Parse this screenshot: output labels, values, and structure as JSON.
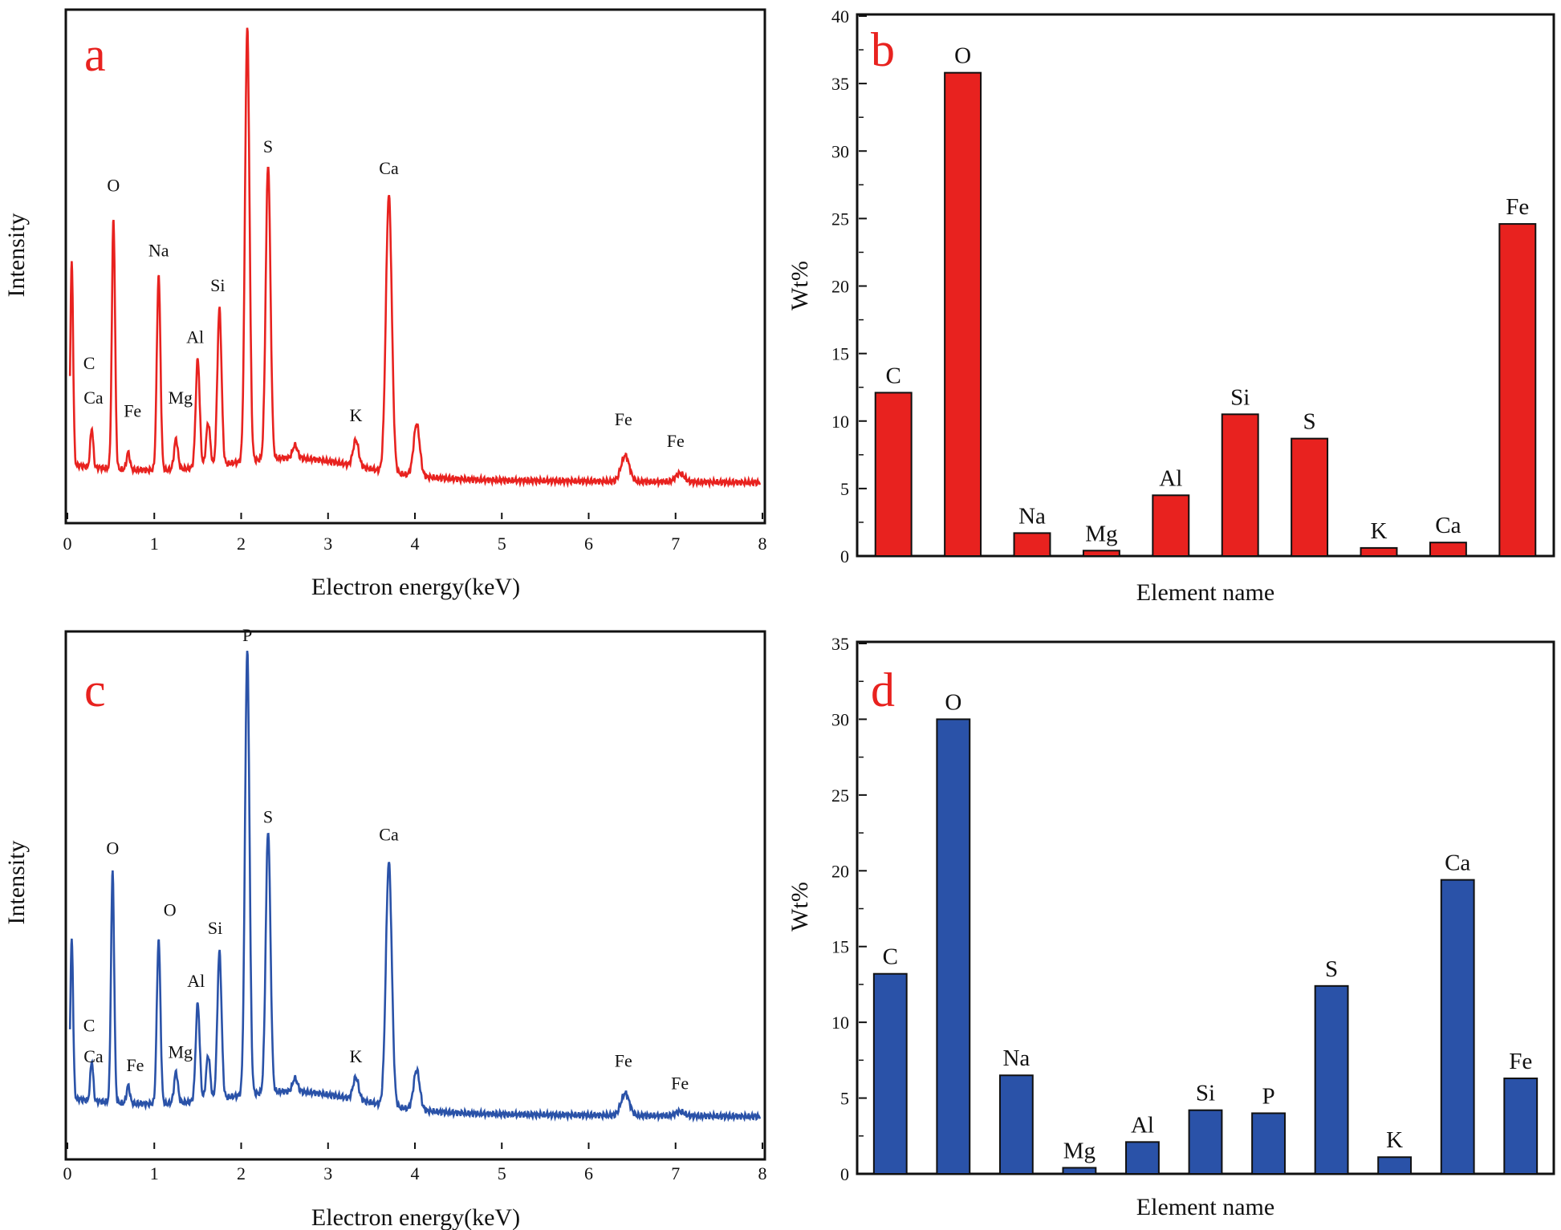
{
  "chart_data": [
    {
      "panel": "a",
      "type": "line",
      "xlabel": "Electron energy(keV)",
      "ylabel": "Intensity",
      "xlim": [
        0,
        8
      ],
      "xticks": [
        "0",
        "1",
        "2",
        "3",
        "4",
        "5",
        "6",
        "7",
        "8"
      ],
      "color": "#e8221f",
      "peaks": [
        {
          "x": 0.05,
          "h": 0.47
        },
        {
          "x": 0.28,
          "h": 0.09
        },
        {
          "x": 0.53,
          "h": 0.58
        },
        {
          "x": 0.7,
          "h": 0.04
        },
        {
          "x": 1.05,
          "h": 0.45
        },
        {
          "x": 1.25,
          "h": 0.07
        },
        {
          "x": 1.5,
          "h": 0.25
        },
        {
          "x": 1.62,
          "h": 0.1
        },
        {
          "x": 1.75,
          "h": 0.36
        },
        {
          "x": 2.07,
          "h": 1.0
        },
        {
          "x": 2.31,
          "h": 0.68
        },
        {
          "x": 2.62,
          "h": 0.03
        },
        {
          "x": 3.32,
          "h": 0.06
        },
        {
          "x": 3.7,
          "h": 0.64
        },
        {
          "x": 4.02,
          "h": 0.12
        },
        {
          "x": 6.42,
          "h": 0.06
        },
        {
          "x": 7.05,
          "h": 0.02
        }
      ],
      "peak_labels": [
        {
          "text": "C",
          "x": 0.25,
          "h": 0.25
        },
        {
          "text": "Ca",
          "x": 0.3,
          "h": 0.17
        },
        {
          "text": "O",
          "x": 0.53,
          "h": 0.66
        },
        {
          "text": "Fe",
          "x": 0.75,
          "h": 0.14
        },
        {
          "text": "Na",
          "x": 1.05,
          "h": 0.51
        },
        {
          "text": "Mg",
          "x": 1.3,
          "h": 0.17
        },
        {
          "text": "Al",
          "x": 1.47,
          "h": 0.31
        },
        {
          "text": "Si",
          "x": 1.73,
          "h": 0.43
        },
        {
          "text": "S",
          "x": 2.31,
          "h": 0.75
        },
        {
          "text": "K",
          "x": 3.32,
          "h": 0.13
        },
        {
          "text": "Ca",
          "x": 3.7,
          "h": 0.7
        },
        {
          "text": "Fe",
          "x": 6.4,
          "h": 0.12
        },
        {
          "text": "Fe",
          "x": 7.0,
          "h": 0.07
        }
      ]
    },
    {
      "panel": "b",
      "type": "bar",
      "categories": [
        "C",
        "O",
        "Na",
        "Mg",
        "Al",
        "Si",
        "S",
        "K",
        "Ca",
        "Fe"
      ],
      "values": [
        12.1,
        35.8,
        1.7,
        0.4,
        4.5,
        10.5,
        8.7,
        0.6,
        1.0,
        24.6
      ],
      "xlabel": "Element name",
      "ylabel": "Wt%",
      "ylim": [
        0,
        40
      ],
      "yticks": [
        "0",
        "5",
        "10",
        "15",
        "20",
        "25",
        "30",
        "35",
        "40"
      ],
      "color": "#e8221f"
    },
    {
      "panel": "c",
      "type": "line",
      "xlabel": "Electron energy(keV)",
      "ylabel": "Intensity",
      "xlim": [
        0,
        8
      ],
      "xticks": [
        "0",
        "1",
        "2",
        "3",
        "4",
        "5",
        "6",
        "7",
        "8"
      ],
      "color": "#2a52a8",
      "peaks": [
        {
          "x": 0.05,
          "h": 0.36
        },
        {
          "x": 0.28,
          "h": 0.09
        },
        {
          "x": 0.52,
          "h": 0.52
        },
        {
          "x": 0.7,
          "h": 0.04
        },
        {
          "x": 1.05,
          "h": 0.37
        },
        {
          "x": 1.25,
          "h": 0.07
        },
        {
          "x": 1.5,
          "h": 0.22
        },
        {
          "x": 1.62,
          "h": 0.1
        },
        {
          "x": 1.75,
          "h": 0.33
        },
        {
          "x": 2.07,
          "h": 1.0
        },
        {
          "x": 2.31,
          "h": 0.59
        },
        {
          "x": 2.62,
          "h": 0.03
        },
        {
          "x": 3.32,
          "h": 0.05
        },
        {
          "x": 3.7,
          "h": 0.55
        },
        {
          "x": 4.02,
          "h": 0.09
        },
        {
          "x": 6.42,
          "h": 0.05
        },
        {
          "x": 7.05,
          "h": 0.01
        }
      ],
      "peak_labels": [
        {
          "text": "P",
          "x": 2.07,
          "h": 1.06
        },
        {
          "text": "C",
          "x": 0.25,
          "h": 0.18
        },
        {
          "text": "Ca",
          "x": 0.3,
          "h": 0.11
        },
        {
          "text": "O",
          "x": 0.52,
          "h": 0.58
        },
        {
          "text": "Fe",
          "x": 0.78,
          "h": 0.09
        },
        {
          "text": "O",
          "x": 1.18,
          "h": 0.44
        },
        {
          "text": "Mg",
          "x": 1.3,
          "h": 0.12
        },
        {
          "text": "Al",
          "x": 1.48,
          "h": 0.28
        },
        {
          "text": "Si",
          "x": 1.7,
          "h": 0.4
        },
        {
          "text": "S",
          "x": 2.31,
          "h": 0.65
        },
        {
          "text": "K",
          "x": 3.32,
          "h": 0.11
        },
        {
          "text": "Ca",
          "x": 3.7,
          "h": 0.61
        },
        {
          "text": "Fe",
          "x": 6.4,
          "h": 0.1
        },
        {
          "text": "Fe",
          "x": 7.05,
          "h": 0.05
        }
      ]
    },
    {
      "panel": "d",
      "type": "bar",
      "categories": [
        "C",
        "O",
        "Na",
        "Mg",
        "Al",
        "Si",
        "P",
        "S",
        "K",
        "Ca",
        "Fe"
      ],
      "values": [
        13.2,
        30.0,
        6.5,
        0.4,
        2.1,
        4.2,
        4.0,
        12.4,
        1.1,
        19.4,
        6.3
      ],
      "xlabel": "Element name",
      "ylabel": "Wt%",
      "ylim": [
        0,
        35
      ],
      "yticks": [
        "0",
        "5",
        "10",
        "15",
        "20",
        "25",
        "30",
        "35"
      ],
      "color": "#2a52a8"
    }
  ]
}
